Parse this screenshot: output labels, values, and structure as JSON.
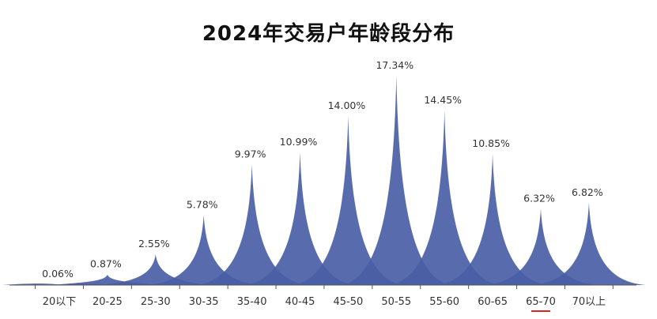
{
  "chart_data": {
    "type": "area",
    "title": "2024年交易户年龄段分布",
    "categories": [
      "20以下",
      "20-25",
      "25-30",
      "30-35",
      "35-40",
      "40-45",
      "45-50",
      "50-55",
      "55-60",
      "60-65",
      "65-70",
      "70以上"
    ],
    "values": [
      0.06,
      0.87,
      2.55,
      5.78,
      9.97,
      10.99,
      14.0,
      17.34,
      14.45,
      10.85,
      6.32,
      6.82
    ],
    "data_labels": [
      "0.06%",
      "0.87%",
      "2.55%",
      "5.78%",
      "9.97%",
      "10.99%",
      "14.00%",
      "17.34%",
      "14.45%",
      "10.85%",
      "6.32%",
      "6.82%"
    ],
    "ylim": [
      0,
      17.34
    ],
    "grid": false,
    "legend": "none",
    "fill_color": "#4a5ea6",
    "highlight_underline_color": "#e02020"
  }
}
